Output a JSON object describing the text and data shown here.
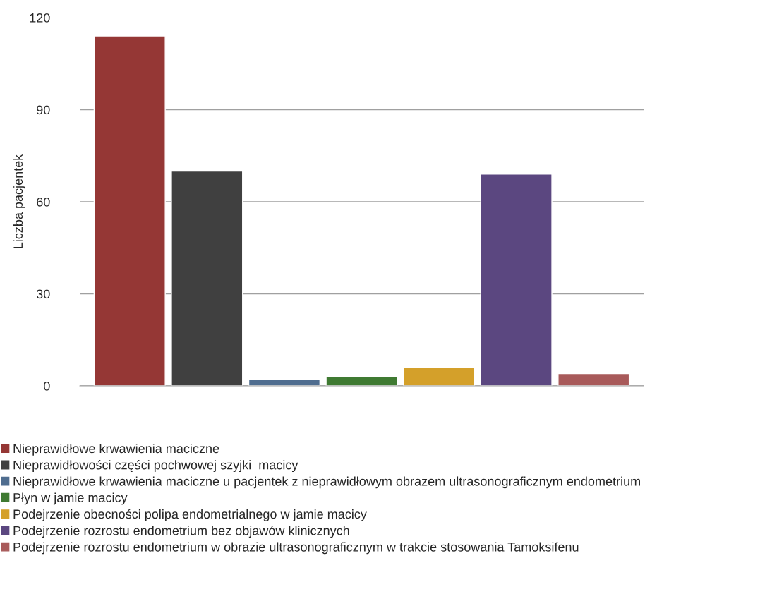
{
  "chart_data": {
    "type": "bar",
    "ylabel": "Liczba pacjentek",
    "categories": [
      null
    ],
    "series": [
      {
        "name": "Nieprawidłowe krwawienia maciczne",
        "color": "#953735",
        "values": [
          114
        ]
      },
      {
        "name": "Nieprawidłowości części pochwowej szyjki  macicy",
        "color": "#404040",
        "values": [
          70
        ]
      },
      {
        "name": "Nieprawidłowe krwawienia maciczne u pacjentek z nieprawidłowym obrazem ultrasonograficznym endometrium",
        "color": "#4f6d8f",
        "values": [
          2
        ]
      },
      {
        "name": "Płyn w jamie macicy",
        "color": "#3f7a32",
        "values": [
          3
        ]
      },
      {
        "name": "Podejrzenie obecności polipa endometrialnego w jamie macicy",
        "color": "#d4a02a",
        "values": [
          6
        ]
      },
      {
        "name": "Podejrzenie rozrostu endometrium bez objawów klinicznych",
        "color": "#5b4780",
        "values": [
          69
        ]
      },
      {
        "name": "Podejrzenie rozrostu endometrium w obrazie ultrasonograficznym w trakcie stosowania Tamoksifenu",
        "color": "#a85a5a",
        "values": [
          4
        ]
      }
    ],
    "ylim": [
      0,
      120
    ],
    "yticks": [
      0,
      30,
      60,
      90,
      120
    ],
    "grid": "y",
    "legend": "bottom left"
  }
}
